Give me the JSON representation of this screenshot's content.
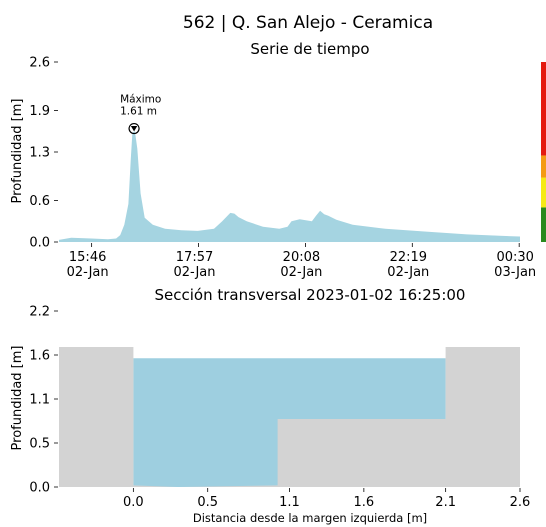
{
  "title": "562 | Q. San Alejo - Ceramica",
  "chart_data": [
    {
      "type": "area",
      "title": "Serie de tiempo",
      "ylabel": "Profundidad [m]",
      "ylim": [
        0.0,
        2.6
      ],
      "yticks": [
        "0.0",
        "0.6",
        "1.3",
        "1.9",
        "2.6"
      ],
      "xticks": [
        {
          "time": "15:46",
          "date": "02-Jan",
          "t": 40
        },
        {
          "time": "17:57",
          "date": "02-Jan",
          "t": 171
        },
        {
          "time": "20:08",
          "date": "02-Jan",
          "t": 302
        },
        {
          "time": "22:19",
          "date": "02-Jan",
          "t": 433
        },
        {
          "time": "00:30",
          "date": "03-Jan",
          "t": 564
        }
      ],
      "x_minutes_from_15_06": [
        0,
        15,
        40,
        60,
        70,
        75,
        80,
        85,
        88,
        90,
        93,
        96,
        100,
        105,
        115,
        130,
        150,
        170,
        190,
        200,
        210,
        215,
        220,
        230,
        250,
        270,
        280,
        285,
        295,
        310,
        315,
        320,
        325,
        330,
        340,
        360,
        400,
        450,
        500,
        540,
        565
      ],
      "values": [
        0.03,
        0.06,
        0.05,
        0.04,
        0.05,
        0.1,
        0.25,
        0.55,
        1.2,
        1.58,
        1.6,
        1.35,
        0.7,
        0.35,
        0.25,
        0.19,
        0.17,
        0.16,
        0.19,
        0.3,
        0.42,
        0.41,
        0.36,
        0.3,
        0.22,
        0.19,
        0.22,
        0.3,
        0.33,
        0.3,
        0.38,
        0.45,
        0.4,
        0.38,
        0.32,
        0.25,
        0.19,
        0.15,
        0.11,
        0.09,
        0.08
      ],
      "fill_color": "#a5d4e1",
      "annotation": {
        "label": "Máximo",
        "value": "1.61 m",
        "x": 92,
        "y": 1.61
      },
      "alert_bar": [
        {
          "from": 0.0,
          "to": 0.5,
          "color": "#2a8a1e"
        },
        {
          "from": 0.5,
          "to": 0.93,
          "color": "#f5ea16"
        },
        {
          "from": 0.93,
          "to": 1.25,
          "color": "#f49b14"
        },
        {
          "from": 1.25,
          "to": 2.6,
          "color": "#e41a10"
        }
      ]
    },
    {
      "type": "area",
      "title": "Sección transversal 2023-01-02 16:25:00",
      "xlabel": "Distancia desde la margen izquierda [m]",
      "ylabel": "Profundidad [m]",
      "xlim": [
        -0.5,
        2.6
      ],
      "ylim": [
        0.0,
        2.2
      ],
      "xticks": [
        "0.0",
        "0.5",
        "1.1",
        "1.6",
        "2.1",
        "2.6"
      ],
      "xtick_values": [
        0.0,
        0.5,
        1.05,
        1.55,
        2.1,
        2.6
      ],
      "yticks": [
        "0.0",
        "0.5",
        "1.1",
        "1.6",
        "2.2"
      ],
      "ytick_values": [
        0.0,
        0.55,
        1.1,
        1.65,
        2.2
      ],
      "water_level": 1.61,
      "bed_profile": {
        "x": [
          -0.5,
          0.0,
          0.0,
          0.3,
          0.97,
          0.97,
          2.1,
          2.1,
          2.6
        ],
        "y": [
          1.75,
          1.75,
          0.02,
          0.0,
          0.02,
          0.85,
          0.85,
          1.75,
          1.75
        ]
      },
      "water_color": "#9ecfe0",
      "bed_color": "#d3d3d3"
    }
  ]
}
